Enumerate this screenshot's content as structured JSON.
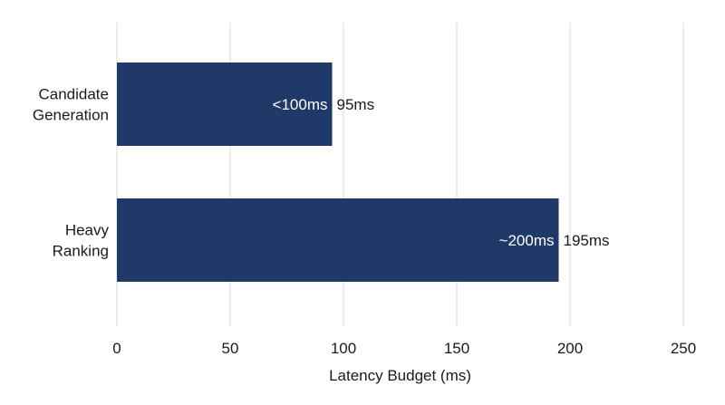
{
  "chart_data": {
    "type": "bar",
    "orientation": "horizontal",
    "categories": [
      [
        "Candidate",
        "Generation"
      ],
      [
        "Heavy",
        "Ranking"
      ]
    ],
    "values": [
      95,
      195
    ],
    "bar_inner_labels": [
      "<100ms",
      "~200ms"
    ],
    "bar_value_labels": [
      "95ms",
      "195ms"
    ],
    "xlabel": "Latency Budget (ms)",
    "xlim": [
      0,
      250
    ],
    "xticks": [
      "0",
      "50",
      "100",
      "150",
      "200",
      "250"
    ],
    "grid": true,
    "colors": {
      "bar": "#1f3a68",
      "grid": "#d9d9d9",
      "text": "#1a1a1a"
    }
  }
}
